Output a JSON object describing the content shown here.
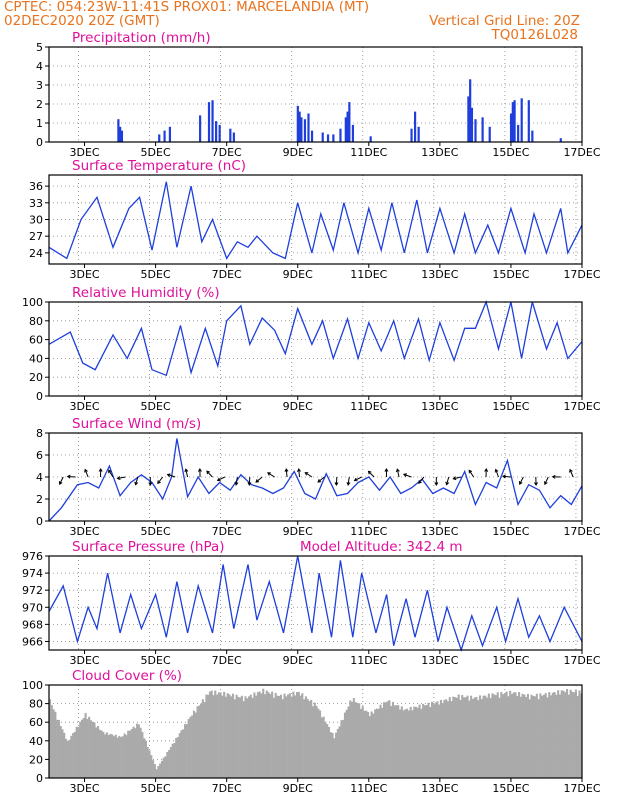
{
  "header": {
    "line1_left": "CPTEC:   054:23W-11:41S   PROX01: MARCELANDIA (MT)",
    "line2_left": "02DEC2020 20Z (GMT)",
    "line2_right": "Vertical Grid Line: 20Z",
    "line3_right": "TQ0126L028"
  },
  "colors": {
    "header": "#e8731e",
    "title": "#e0109a",
    "series": "#1f3fdc",
    "cloud": "#aaaaaa"
  },
  "date_ticks": [
    "3DEC",
    "5DEC",
    "7DEC",
    "9DEC",
    "11DEC",
    "13DEC",
    "15DEC",
    "17DEC"
  ],
  "chart_data": [
    {
      "type": "bar",
      "title": "Precipitation (mm/h)",
      "ylim": [
        0,
        5
      ],
      "yticks": [
        "0",
        "1",
        "2",
        "3",
        "4",
        "5"
      ],
      "x": [
        3.95,
        4.0,
        4.05,
        5.1,
        5.25,
        5.4,
        6.25,
        6.5,
        6.6,
        6.7,
        6.8,
        7.1,
        7.2,
        9.0,
        9.05,
        9.1,
        9.2,
        9.3,
        9.4,
        9.7,
        9.85,
        10.0,
        10.2,
        10.35,
        10.4,
        10.45,
        10.55,
        11.05,
        12.2,
        12.3,
        12.4,
        13.8,
        13.85,
        13.9,
        14.0,
        14.2,
        14.4,
        15.0,
        15.05,
        15.1,
        15.2,
        15.3,
        15.5,
        15.6,
        16.4
      ],
      "values": [
        1.2,
        0.8,
        0.6,
        0.4,
        0.6,
        0.8,
        1.4,
        2.1,
        2.2,
        1.1,
        0.9,
        0.7,
        0.5,
        1.9,
        1.6,
        1.3,
        1.2,
        1.5,
        0.6,
        0.5,
        0.4,
        0.4,
        0.7,
        1.3,
        1.6,
        2.1,
        0.9,
        0.3,
        0.7,
        1.6,
        0.8,
        2.4,
        3.3,
        1.8,
        1.2,
        1.3,
        0.8,
        1.5,
        2.1,
        2.2,
        0.9,
        2.3,
        2.2,
        0.6,
        0.2
      ]
    },
    {
      "type": "line",
      "title": "Surface Temperature (nC)",
      "ylim": [
        22,
        38
      ],
      "yticks": [
        "24",
        "27",
        "30",
        "33",
        "36"
      ],
      "x": [
        2.0,
        2.5,
        2.9,
        3.35,
        3.8,
        4.25,
        4.55,
        4.9,
        5.3,
        5.6,
        6.0,
        6.3,
        6.6,
        7.0,
        7.3,
        7.6,
        7.85,
        8.3,
        8.65,
        9.0,
        9.4,
        9.65,
        10.0,
        10.3,
        10.7,
        11.0,
        11.35,
        11.65,
        12.0,
        12.35,
        12.65,
        13.0,
        13.4,
        13.7,
        14.0,
        14.35,
        14.65,
        15.0,
        15.4,
        15.65,
        16.0,
        16.4,
        16.6,
        17.0
      ],
      "values": [
        25.0,
        23.0,
        30.0,
        34.0,
        25.0,
        32.0,
        34.0,
        24.5,
        36.8,
        25.0,
        36.0,
        26.0,
        30.0,
        23.0,
        26.0,
        25.0,
        27.0,
        24.0,
        23.0,
        33.0,
        24.0,
        31.0,
        24.5,
        33.0,
        24.0,
        32.0,
        24.5,
        33.0,
        24.0,
        33.5,
        24.0,
        32.0,
        24.0,
        31.0,
        24.0,
        29.0,
        24.0,
        32.0,
        24.0,
        31.0,
        24.0,
        32.0,
        24.0,
        29.0
      ]
    },
    {
      "type": "line",
      "title": "Relative Humidity (%)",
      "ylim": [
        0,
        100
      ],
      "yticks": [
        "0",
        "20",
        "40",
        "60",
        "80",
        "100"
      ],
      "x": [
        2.0,
        2.6,
        2.95,
        3.3,
        3.8,
        4.2,
        4.6,
        4.9,
        5.3,
        5.7,
        6.0,
        6.4,
        6.75,
        7.0,
        7.4,
        7.65,
        8.0,
        8.35,
        8.65,
        9.0,
        9.4,
        9.7,
        10.0,
        10.4,
        10.7,
        11.0,
        11.35,
        11.7,
        12.0,
        12.4,
        12.7,
        13.0,
        13.4,
        13.7,
        14.0,
        14.3,
        14.65,
        15.0,
        15.3,
        15.6,
        16.0,
        16.3,
        16.6,
        17.0
      ],
      "values": [
        55.0,
        68.0,
        35.0,
        28.0,
        65.0,
        40.0,
        72.0,
        28.0,
        22.0,
        75.0,
        25.0,
        72.0,
        32.0,
        80.0,
        96.0,
        55.0,
        83.0,
        70.0,
        45.0,
        93.0,
        55.0,
        80.0,
        40.0,
        82.0,
        40.0,
        78.0,
        48.0,
        80.0,
        40.0,
        82.0,
        38.0,
        78.0,
        38.0,
        72.0,
        72.0,
        100.0,
        50.0,
        100.0,
        40.0,
        100.0,
        50.0,
        78.0,
        40.0,
        58.0
      ]
    },
    {
      "type": "line",
      "title": "Surface Wind (m/s)",
      "ylim": [
        0,
        8
      ],
      "yticks": [
        "0",
        "2",
        "4",
        "6",
        "8"
      ],
      "x": [
        2.0,
        2.35,
        2.8,
        3.1,
        3.4,
        3.7,
        4.0,
        4.3,
        4.6,
        4.9,
        5.2,
        5.45,
        5.6,
        5.9,
        6.2,
        6.5,
        6.8,
        7.1,
        7.4,
        7.7,
        8.0,
        8.3,
        8.6,
        8.9,
        9.2,
        9.5,
        9.8,
        10.1,
        10.4,
        10.7,
        11.0,
        11.3,
        11.6,
        11.9,
        12.2,
        12.5,
        12.8,
        13.1,
        13.4,
        13.7,
        14.0,
        14.3,
        14.6,
        14.9,
        15.2,
        15.5,
        15.8,
        16.1,
        16.4,
        16.7,
        17.0
      ],
      "values": [
        0.0,
        1.2,
        3.3,
        3.5,
        3.0,
        5.0,
        2.3,
        3.5,
        4.2,
        3.5,
        2.0,
        4.0,
        7.5,
        2.2,
        4.0,
        2.5,
        3.5,
        2.8,
        4.2,
        3.3,
        3.0,
        2.5,
        3.0,
        4.5,
        2.5,
        2.0,
        4.3,
        2.3,
        2.5,
        3.5,
        4.0,
        2.8,
        4.0,
        2.5,
        3.0,
        3.8,
        2.5,
        3.0,
        2.5,
        4.5,
        1.5,
        3.5,
        3.0,
        5.5,
        1.5,
        3.3,
        2.8,
        1.2,
        2.3,
        1.5,
        3.2
      ]
    },
    {
      "type": "line",
      "title": "Surface Pressure (hPa)",
      "annotation": "Model Altitude: 342.4 m",
      "ylim": [
        965.0,
        976.0
      ],
      "yticks": [
        "966",
        "968",
        "970",
        "972",
        "974",
        "976"
      ],
      "x": [
        2.0,
        2.4,
        2.8,
        3.1,
        3.35,
        3.65,
        4.0,
        4.3,
        4.6,
        5.0,
        5.3,
        5.6,
        5.9,
        6.2,
        6.6,
        6.9,
        7.2,
        7.6,
        7.85,
        8.2,
        8.6,
        9.0,
        9.4,
        9.6,
        9.95,
        10.2,
        10.55,
        10.8,
        11.2,
        11.5,
        11.7,
        12.05,
        12.3,
        12.65,
        12.95,
        13.2,
        13.6,
        13.9,
        14.2,
        14.6,
        14.85,
        15.2,
        15.5,
        15.8,
        16.1,
        16.5,
        17.0
      ],
      "values": [
        969.5,
        972.5,
        966.0,
        970.0,
        967.5,
        974.0,
        967.0,
        971.5,
        967.5,
        971.5,
        966.5,
        973.0,
        967.0,
        972.5,
        967.0,
        975.0,
        967.5,
        975.0,
        968.5,
        973.0,
        967.0,
        976.0,
        967.0,
        974.0,
        966.5,
        975.5,
        966.5,
        974.0,
        967.0,
        971.5,
        965.5,
        971.0,
        966.5,
        972.0,
        966.0,
        970.0,
        965.0,
        969.0,
        965.5,
        970.0,
        966.0,
        971.0,
        966.5,
        969.0,
        966.0,
        970.0,
        966.0
      ]
    },
    {
      "type": "bar",
      "title": "Cloud Cover (%)",
      "ylim": [
        0,
        100
      ],
      "yticks": [
        "0",
        "20",
        "40",
        "60",
        "80",
        "100"
      ],
      "x": [
        2.0,
        2.5,
        3.0,
        3.5,
        4.0,
        4.5,
        5.0,
        5.5,
        6.0,
        6.5,
        7.0,
        7.5,
        8.0,
        8.5,
        9.0,
        9.5,
        10.0,
        10.5,
        11.0,
        11.5,
        12.0,
        12.5,
        13.0,
        13.5,
        14.0,
        14.5,
        15.0,
        15.5,
        16.0,
        16.5,
        17.0
      ],
      "values": [
        85,
        40,
        70,
        50,
        45,
        60,
        10,
        40,
        70,
        95,
        92,
        88,
        96,
        90,
        94,
        80,
        45,
        88,
        70,
        85,
        75,
        80,
        84,
        90,
        88,
        92,
        94,
        90,
        92,
        96,
        94
      ]
    }
  ]
}
